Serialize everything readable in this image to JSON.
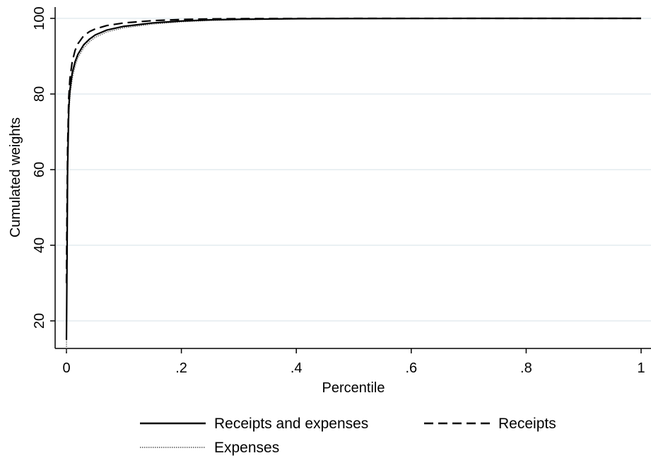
{
  "chart_data": {
    "type": "line",
    "xlabel": "Percentile",
    "ylabel": "Cumulated weights",
    "xlim": [
      0,
      1
    ],
    "ylim": [
      12,
      100
    ],
    "x_ticks": [
      {
        "value": 0,
        "label": "0"
      },
      {
        "value": 0.2,
        "label": ".2"
      },
      {
        "value": 0.4,
        "label": ".4"
      },
      {
        "value": 0.6,
        "label": ".6"
      },
      {
        "value": 0.8,
        "label": ".8"
      },
      {
        "value": 1,
        "label": "1"
      }
    ],
    "y_ticks": [
      {
        "value": 20,
        "label": "20"
      },
      {
        "value": 40,
        "label": "40"
      },
      {
        "value": 60,
        "label": "60"
      },
      {
        "value": 80,
        "label": "80"
      },
      {
        "value": 100,
        "label": "100"
      }
    ],
    "grid": "horizontal",
    "legend_position": "bottom",
    "series": [
      {
        "name": "Receipts and expenses",
        "style": "solid",
        "color": "#000000",
        "x": [
          0,
          0.001,
          0.002,
          0.004,
          0.006,
          0.01,
          0.015,
          0.02,
          0.03,
          0.04,
          0.05,
          0.07,
          0.1,
          0.15,
          0.2,
          0.25,
          0.3,
          0.4,
          0.5,
          0.7,
          1.0
        ],
        "y": [
          15,
          35,
          60,
          76,
          81,
          85.5,
          88.5,
          90.5,
          93,
          94.5,
          95.6,
          96.9,
          97.9,
          98.8,
          99.3,
          99.6,
          99.75,
          99.9,
          99.95,
          100,
          100
        ]
      },
      {
        "name": "Receipts",
        "style": "dashed",
        "color": "#000000",
        "x": [
          0,
          0.001,
          0.002,
          0.004,
          0.006,
          0.01,
          0.015,
          0.02,
          0.03,
          0.04,
          0.05,
          0.07,
          0.1,
          0.15,
          0.2,
          0.25,
          0.3,
          0.4,
          0.5,
          0.7,
          1.0
        ],
        "y": [
          30,
          50,
          66,
          79,
          84,
          88.5,
          91.5,
          93.3,
          95.4,
          96.5,
          97.2,
          98.1,
          98.8,
          99.4,
          99.7,
          99.85,
          99.92,
          99.97,
          100,
          100,
          100
        ]
      },
      {
        "name": "Expenses",
        "style": "dotted",
        "color": "#555555",
        "x": [
          0,
          0.001,
          0.002,
          0.004,
          0.006,
          0.01,
          0.015,
          0.02,
          0.03,
          0.04,
          0.05,
          0.07,
          0.1,
          0.15,
          0.2,
          0.25,
          0.3,
          0.4,
          0.5,
          0.7,
          1.0
        ],
        "y": [
          12,
          32,
          56,
          73,
          79,
          84,
          87.3,
          89.6,
          92.2,
          93.8,
          95,
          96.4,
          97.5,
          98.5,
          99.1,
          99.45,
          99.65,
          99.85,
          99.93,
          100,
          100
        ]
      }
    ]
  }
}
